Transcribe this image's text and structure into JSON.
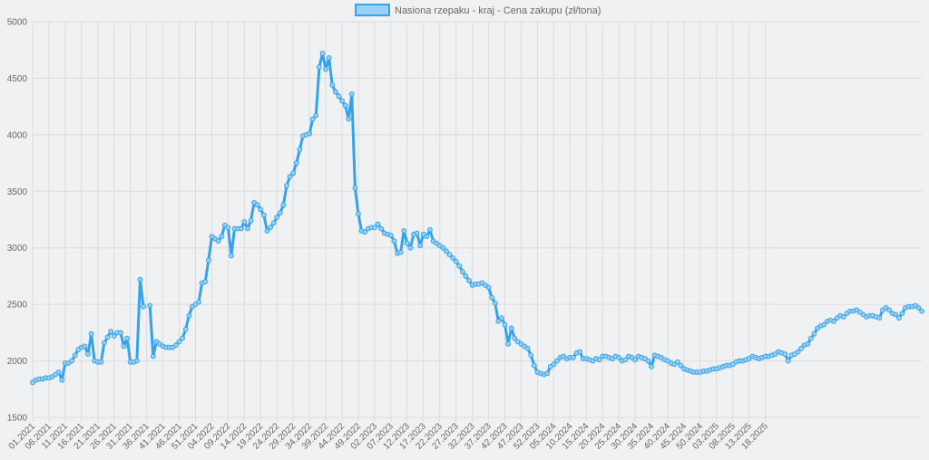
{
  "chart_data": {
    "type": "line",
    "legend": "top-center",
    "grid": true,
    "ylim": [
      1500,
      5000
    ],
    "yticks": [
      1500,
      2000,
      2500,
      3000,
      3500,
      4000,
      4500,
      5000
    ],
    "colors": {
      "line": "#36a2eb",
      "fill": "#9ad0f5",
      "grid": "#dcdcdc",
      "background": "#f0f1f3"
    },
    "series": [
      {
        "name": "Nasiona rzepaku - kraj - Cena zakupu (zł/tona)",
        "values": [
          1810,
          1830,
          1840,
          1840,
          1850,
          1850,
          1860,
          1880,
          1900,
          1830,
          1980,
          1980,
          2000,
          2050,
          2100,
          2120,
          2130,
          2060,
          2240,
          2000,
          1990,
          1990,
          2160,
          2210,
          2260,
          2220,
          2250,
          2250,
          2130,
          2200,
          1990,
          1990,
          2000,
          2720,
          2480,
          null,
          2490,
          2040,
          2170,
          2150,
          2130,
          2120,
          2120,
          2120,
          2140,
          2170,
          2200,
          2280,
          2400,
          2480,
          2500,
          2520,
          2690,
          2700,
          2890,
          3100,
          3080,
          3060,
          3100,
          3200,
          3180,
          2930,
          3170,
          3170,
          3170,
          3230,
          3170,
          3240,
          3400,
          3380,
          3340,
          3290,
          3150,
          3180,
          3220,
          3270,
          3310,
          3380,
          3550,
          3630,
          3660,
          3750,
          3870,
          3990,
          4000,
          4010,
          4140,
          4170,
          4600,
          4720,
          4580,
          4680,
          4440,
          4380,
          4340,
          4300,
          4260,
          4140,
          4360,
          3530,
          3300,
          3150,
          3140,
          3170,
          3180,
          3180,
          3210,
          3170,
          3130,
          3120,
          3110,
          3060,
          2950,
          2960,
          3150,
          3040,
          3000,
          3120,
          3130,
          3020,
          3120,
          3100,
          3160,
          3060,
          3040,
          3020,
          3000,
          2970,
          2940,
          2910,
          2880,
          2840,
          2790,
          2750,
          2710,
          2670,
          2680,
          2680,
          2690,
          2670,
          2650,
          2560,
          2510,
          2350,
          2380,
          2320,
          2150,
          2290,
          2200,
          2170,
          2150,
          2130,
          2110,
          2050,
          1960,
          1900,
          1890,
          1880,
          1890,
          1950,
          1970,
          2000,
          2030,
          2040,
          2020,
          2030,
          2030,
          2070,
          2080,
          2020,
          2020,
          2010,
          2000,
          2020,
          2010,
          2040,
          2040,
          2030,
          2020,
          2040,
          2030,
          2000,
          2010,
          2040,
          2030,
          2010,
          2040,
          2030,
          2020,
          2000,
          1950,
          2050,
          2040,
          2030,
          2010,
          2000,
          1980,
          1970,
          1990,
          1960,
          1930,
          1920,
          1910,
          1900,
          1900,
          1900,
          1910,
          1910,
          1920,
          1930,
          1930,
          1940,
          1950,
          1960,
          1960,
          1970,
          1990,
          2000,
          2000,
          2010,
          2020,
          2040,
          2030,
          2020,
          2030,
          2040,
          2040,
          2050,
          2060,
          2080,
          2070,
          2060,
          2000,
          2050,
          2060,
          2080,
          2110,
          2140,
          2150,
          2200,
          2240,
          2290,
          2310,
          2320,
          2350,
          2360,
          2350,
          2380,
          2400,
          2390,
          2420,
          2440,
          2440,
          2450,
          2430,
          2410,
          2390,
          2400,
          2400,
          2390,
          2380,
          2450,
          2470,
          2450,
          2420,
          2410,
          2380,
          2420,
          2470,
          2480,
          2480,
          2490,
          2470,
          2440
        ]
      }
    ],
    "x_labels": [
      "01.2021",
      "06.2021",
      "11.2021",
      "16.2021",
      "21.2021",
      "26.2021",
      "31.2021",
      "36.2021",
      "41.2021",
      "46.2021",
      "51.2021",
      "04.2022",
      "09.2022",
      "14.2022",
      "19.2022",
      "24.2022",
      "29.2022",
      "34.2022",
      "39.2022",
      "44.2022",
      "49.2022",
      "02.2023",
      "07.2023",
      "12.2023",
      "17.2023",
      "22.2023",
      "27.2023",
      "32.2023",
      "37.2023",
      "42.2023",
      "47.2023",
      "52.2023",
      "05.2024",
      "10.2024",
      "15.2024",
      "20.2024",
      "25.2024",
      "30.2024",
      "35.2024",
      "40.2024",
      "45.2024",
      "50.2024",
      "03.2025",
      "08.2025",
      "13.2025",
      "18.2025"
    ]
  }
}
